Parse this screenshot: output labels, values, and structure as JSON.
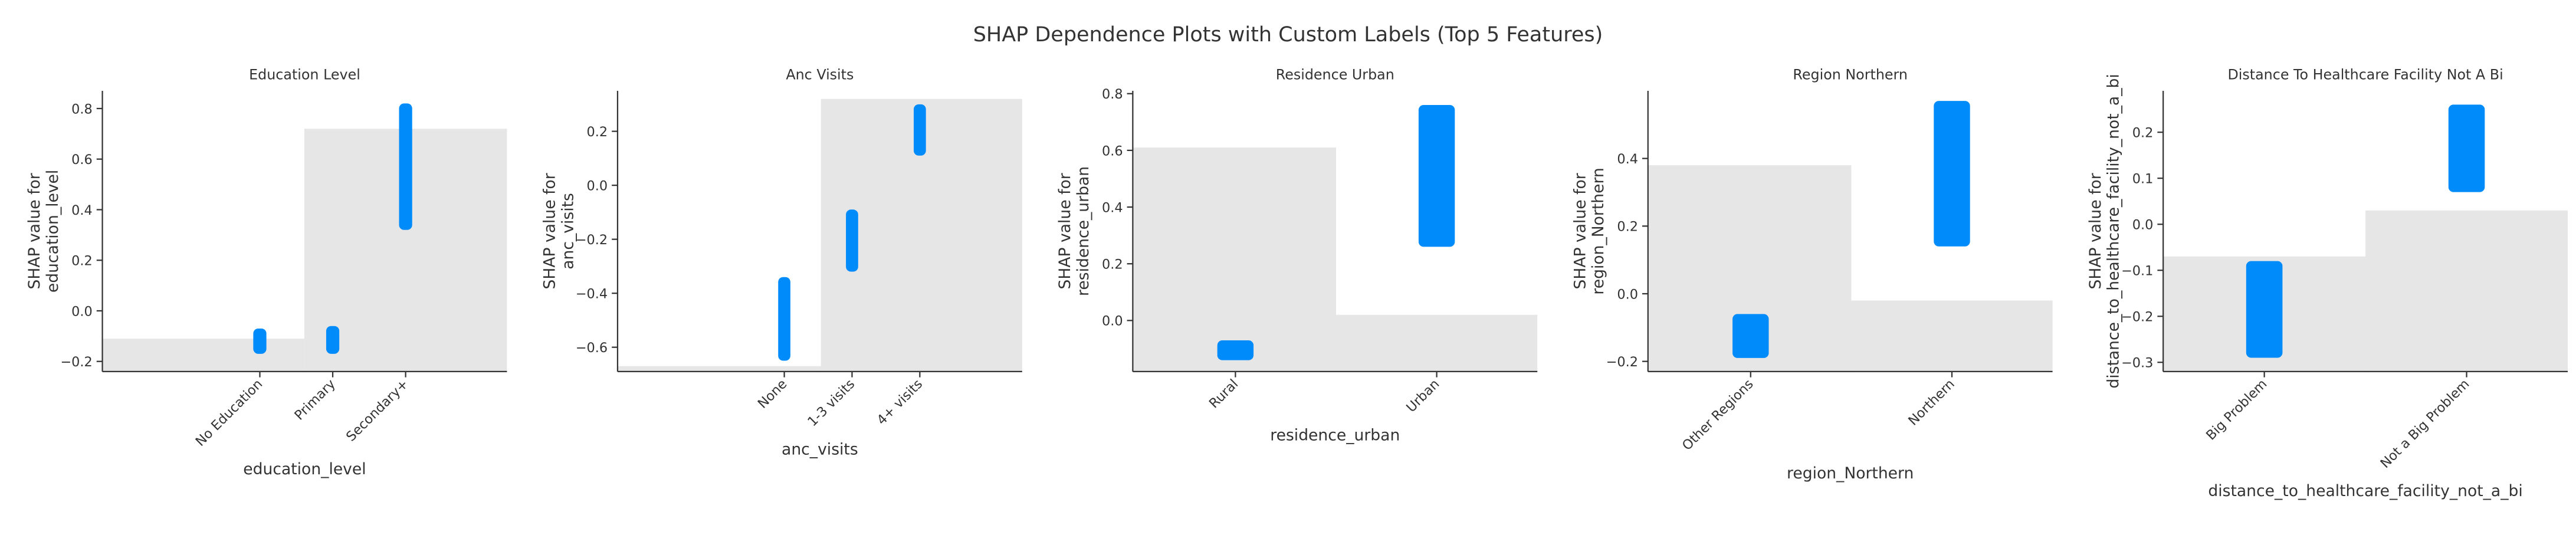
{
  "title": "SHAP Dependence Plots with Custom Labels (Top 5 Features)",
  "chart_data": [
    {
      "type": "scatter",
      "title": "Education Level",
      "xlabel": "education_level",
      "ylabel": [
        "SHAP value for",
        "education_level"
      ],
      "categories": [
        "No Education",
        "Primary",
        "Secondary+"
      ],
      "x": [
        0,
        1,
        2
      ],
      "xlim": [
        -2.16,
        3.39
      ],
      "ylim": [
        -0.24,
        0.87
      ],
      "yticks": [
        {
          "value": -0.2,
          "label": "−0.2"
        },
        {
          "value": 0,
          "label": "0.0"
        },
        0.2,
        0.4,
        0.6,
        0.8
      ],
      "series": [
        {
          "color": "#008bfb",
          "min": [
            -0.17,
            -0.17,
            0.32
          ],
          "max": [
            -0.07,
            -0.06,
            0.82
          ]
        }
      ],
      "hist_bins": [
        -2.16,
        0.61,
        3.39
      ],
      "hist_tops": [
        -0.11,
        0.72
      ],
      "hist_color": "#e6e6e6"
    },
    {
      "type": "scatter",
      "title": "Anc Visits",
      "xlabel": "anc_visits",
      "ylabel": [
        "SHAP value for",
        "anc_visits"
      ],
      "categories": [
        "None",
        "1-3 visits",
        "4+ visits"
      ],
      "x": [
        0,
        1,
        2
      ],
      "xlim": [
        -2.46,
        3.51
      ],
      "ylim": [
        -0.69,
        0.35
      ],
      "yticks": [
        {
          "value": -0.6,
          "label": "−0.6"
        },
        {
          "value": -0.4,
          "label": "−0.4"
        },
        {
          "value": -0.2,
          "label": "−0.2"
        },
        {
          "value": 0,
          "label": "0.0"
        },
        0.2
      ],
      "series": [
        {
          "color": "#008bfb",
          "min": [
            -0.65,
            -0.32,
            0.11
          ],
          "max": [
            -0.34,
            -0.09,
            0.3
          ]
        }
      ],
      "hist_bins": [
        -2.46,
        0.54,
        3.51
      ],
      "hist_tops": [
        -0.67,
        0.32
      ],
      "hist_color": "#e6e6e6"
    },
    {
      "type": "scatter",
      "title": "Residence Urban",
      "xlabel": "residence_urban",
      "ylabel": [
        "SHAP value for",
        "residence_urban"
      ],
      "categories": [
        "Rural",
        "Urban"
      ],
      "x": [
        0,
        1
      ],
      "xlim": [
        -0.51,
        1.5
      ],
      "ylim": [
        -0.18,
        0.81
      ],
      "yticks": [
        {
          "value": 0,
          "label": "0.0"
        },
        0.2,
        0.4,
        0.6,
        0.8
      ],
      "series": [
        {
          "color": "#008bfb",
          "min": [
            -0.14,
            0.26
          ],
          "max": [
            -0.07,
            0.76
          ]
        }
      ],
      "hist_bins": [
        -0.51,
        0.5,
        1.5
      ],
      "hist_tops": [
        0.61,
        0.02
      ],
      "hist_color": "#e6e6e6"
    },
    {
      "type": "scatter",
      "title": "Region Northern",
      "xlabel": "region_Northern",
      "ylabel": [
        "SHAP value for",
        "region_Northern"
      ],
      "categories": [
        "Other Regions",
        "Northern"
      ],
      "x": [
        0,
        1
      ],
      "xlim": [
        -0.51,
        1.5
      ],
      "ylim": [
        -0.23,
        0.6
      ],
      "yticks": [
        {
          "value": -0.2,
          "label": "−0.2"
        },
        {
          "value": 0,
          "label": "0.0"
        },
        0.2,
        0.4
      ],
      "series": [
        {
          "color": "#008bfb",
          "min": [
            -0.19,
            0.14
          ],
          "max": [
            -0.06,
            0.57
          ]
        }
      ],
      "hist_bins": [
        -0.51,
        0.5,
        1.5
      ],
      "hist_tops": [
        0.38,
        -0.02
      ],
      "hist_color": "#e6e6e6"
    },
    {
      "type": "scatter",
      "title": "Distance To Healthcare Facility Not A Bi",
      "xlabel": "distance_to_healthcare_facility_not_a_bi",
      "ylabel": [
        "SHAP value for",
        "distance_to_healthcare_facility_not_a_bi"
      ],
      "categories": [
        "Big Problem",
        "Not a Big Problem"
      ],
      "x": [
        0,
        1
      ],
      "xlim": [
        -0.5,
        1.5
      ],
      "ylim": [
        -0.32,
        0.29
      ],
      "yticks": [
        {
          "value": -0.3,
          "label": "−0.3"
        },
        {
          "value": -0.2,
          "label": "−0.2"
        },
        {
          "value": -0.1,
          "label": "−0.1"
        },
        {
          "value": 0,
          "label": "0.0"
        },
        0.1,
        0.2
      ],
      "series": [
        {
          "color": "#008bfb",
          "min": [
            -0.29,
            0.07
          ],
          "max": [
            -0.08,
            0.26
          ]
        }
      ],
      "hist_bins": [
        -0.5,
        0.5,
        1.5
      ],
      "hist_tops": [
        -0.07,
        0.03
      ],
      "hist_color": "#e6e6e6"
    }
  ]
}
